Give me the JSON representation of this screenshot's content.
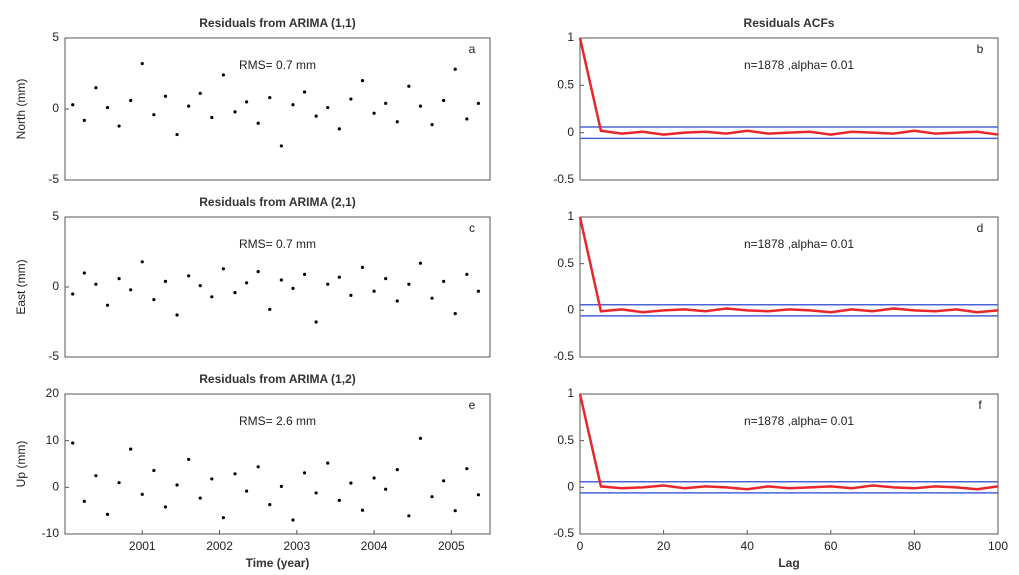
{
  "chart_data": [
    {
      "type": "scatter",
      "title": "Residuals from ARIMA (1,1)",
      "ylabel": "North (mm)",
      "annotation": "RMS= 0.7 mm",
      "panel_label": "a",
      "color": "#000000",
      "xlim": [
        2000.0,
        2005.5
      ],
      "ylim": [
        -5,
        5
      ],
      "yticks": [
        -5,
        0,
        5
      ],
      "x": [
        2000.1,
        2000.25,
        2000.4,
        2000.55,
        2000.7,
        2000.85,
        2001.0,
        2001.15,
        2001.3,
        2001.45,
        2001.6,
        2001.75,
        2001.9,
        2002.05,
        2002.2,
        2002.35,
        2002.5,
        2002.65,
        2002.8,
        2002.95,
        2003.1,
        2003.25,
        2003.4,
        2003.55,
        2003.7,
        2003.85,
        2004.0,
        2004.15,
        2004.3,
        2004.45,
        2004.6,
        2004.75,
        2004.9,
        2005.05,
        2005.2,
        2005.35
      ],
      "values": [
        0.3,
        -0.8,
        1.5,
        0.1,
        -1.2,
        0.6,
        3.2,
        -0.4,
        0.9,
        -1.8,
        0.2,
        1.1,
        -0.6,
        2.4,
        -0.2,
        0.5,
        -1.0,
        0.8,
        -2.6,
        0.3,
        1.2,
        -0.5,
        0.1,
        -1.4,
        0.7,
        2.0,
        -0.3,
        0.4,
        -0.9,
        1.6,
        0.2,
        -1.1,
        0.6,
        2.8,
        -0.7,
        0.4
      ]
    },
    {
      "type": "line",
      "title": "Residuals ACFs",
      "annotation": "n=1878 ,alpha= 0.01",
      "panel_label": "b",
      "xlim": [
        0,
        100
      ],
      "ylim": [
        -0.5,
        1
      ],
      "yticks": [
        -0.5,
        0,
        0.5,
        1
      ],
      "bounds": [
        -0.06,
        0.06
      ],
      "bounds_color": "#4a63d6",
      "x": [
        0,
        5,
        10,
        15,
        20,
        25,
        30,
        35,
        40,
        45,
        50,
        55,
        60,
        65,
        70,
        75,
        80,
        85,
        90,
        95,
        100
      ],
      "series": [
        {
          "color": "#e8262b",
          "values": [
            1,
            0.02,
            -0.01,
            0.01,
            -0.02,
            0.0,
            0.01,
            -0.01,
            0.02,
            -0.01,
            0.0,
            0.01,
            -0.02,
            0.01,
            0.0,
            -0.01,
            0.02,
            -0.01,
            0.0,
            0.01,
            -0.02
          ]
        }
      ]
    },
    {
      "type": "scatter",
      "title": "Residuals from ARIMA (2,1)",
      "ylabel": "East (mm)",
      "annotation": "RMS= 0.7 mm",
      "panel_label": "c",
      "color": "#000000",
      "xlim": [
        2000.0,
        2005.5
      ],
      "ylim": [
        -5,
        5
      ],
      "yticks": [
        -5,
        0,
        5
      ],
      "x": [
        2000.1,
        2000.25,
        2000.4,
        2000.55,
        2000.7,
        2000.85,
        2001.0,
        2001.15,
        2001.3,
        2001.45,
        2001.6,
        2001.75,
        2001.9,
        2002.05,
        2002.2,
        2002.35,
        2002.5,
        2002.65,
        2002.8,
        2002.95,
        2003.1,
        2003.25,
        2003.4,
        2003.55,
        2003.7,
        2003.85,
        2004.0,
        2004.15,
        2004.3,
        2004.45,
        2004.6,
        2004.75,
        2004.9,
        2005.05,
        2005.2,
        2005.35
      ],
      "values": [
        -0.5,
        1.0,
        0.2,
        -1.3,
        0.6,
        -0.2,
        1.8,
        -0.9,
        0.4,
        -2.0,
        0.8,
        0.1,
        -0.7,
        1.3,
        -0.4,
        0.3,
        1.1,
        -1.6,
        0.5,
        -0.1,
        0.9,
        -2.5,
        0.2,
        0.7,
        -0.6,
        1.4,
        -0.3,
        0.6,
        -1.0,
        0.2,
        1.7,
        -0.8,
        0.4,
        -1.9,
        0.9,
        -0.3
      ]
    },
    {
      "type": "line",
      "annotation": "n=1878 ,alpha= 0.01",
      "panel_label": "d",
      "xlim": [
        0,
        100
      ],
      "ylim": [
        -0.5,
        1
      ],
      "yticks": [
        -0.5,
        0,
        0.5,
        1
      ],
      "bounds": [
        -0.06,
        0.06
      ],
      "bounds_color": "#4a63d6",
      "x": [
        0,
        5,
        10,
        15,
        20,
        25,
        30,
        35,
        40,
        45,
        50,
        55,
        60,
        65,
        70,
        75,
        80,
        85,
        90,
        95,
        100
      ],
      "series": [
        {
          "color": "#e8262b",
          "values": [
            1,
            -0.01,
            0.01,
            -0.02,
            0.0,
            0.01,
            -0.01,
            0.02,
            0.0,
            -0.01,
            0.01,
            0.0,
            -0.02,
            0.01,
            -0.01,
            0.02,
            0.0,
            -0.01,
            0.01,
            -0.02,
            0.0
          ]
        }
      ]
    },
    {
      "type": "scatter",
      "title": "Residuals from ARIMA (1,2)",
      "ylabel": "Up (mm)",
      "xlabel": "Time (year)",
      "annotation": "RMS= 2.6 mm",
      "panel_label": "e",
      "color": "#000000",
      "xlim": [
        2000.0,
        2005.5
      ],
      "ylim": [
        -10,
        20
      ],
      "yticks": [
        -10,
        0,
        10,
        20
      ],
      "xticks": [
        2001,
        2002,
        2003,
        2004,
        2005
      ],
      "x": [
        2000.1,
        2000.25,
        2000.4,
        2000.55,
        2000.7,
        2000.85,
        2001.0,
        2001.15,
        2001.3,
        2001.45,
        2001.6,
        2001.75,
        2001.9,
        2002.05,
        2002.2,
        2002.35,
        2002.5,
        2002.65,
        2002.8,
        2002.95,
        2003.1,
        2003.25,
        2003.4,
        2003.55,
        2003.7,
        2003.85,
        2004.0,
        2004.15,
        2004.3,
        2004.45,
        2004.6,
        2004.75,
        2004.9,
        2005.05,
        2005.2,
        2005.35
      ],
      "values": [
        9.5,
        -3.0,
        2.5,
        -5.8,
        1.0,
        8.2,
        -1.5,
        3.6,
        -4.2,
        0.5,
        6.0,
        -2.3,
        1.8,
        -6.5,
        2.9,
        -0.8,
        4.4,
        -3.7,
        0.2,
        -7.0,
        3.1,
        -1.2,
        5.2,
        -2.8,
        0.9,
        -4.9,
        2.0,
        -0.4,
        3.8,
        -6.1,
        10.5,
        -2.0,
        1.4,
        -5.0,
        4.0,
        -1.6
      ]
    },
    {
      "type": "line",
      "xlabel": "Lag",
      "annotation": "n=1878 ,alpha= 0.01",
      "panel_label": "f",
      "xlim": [
        0,
        100
      ],
      "ylim": [
        -0.5,
        1
      ],
      "yticks": [
        -0.5,
        0,
        0.5,
        1
      ],
      "xticks": [
        0,
        20,
        40,
        60,
        80,
        100
      ],
      "bounds": [
        -0.06,
        0.06
      ],
      "bounds_color": "#4a63d6",
      "x": [
        0,
        5,
        10,
        15,
        20,
        25,
        30,
        35,
        40,
        45,
        50,
        55,
        60,
        65,
        70,
        75,
        80,
        85,
        90,
        95,
        100
      ],
      "series": [
        {
          "color": "#e8262b",
          "values": [
            1,
            0.01,
            -0.01,
            0.0,
            0.02,
            -0.01,
            0.01,
            0.0,
            -0.02,
            0.01,
            -0.01,
            0.0,
            0.01,
            -0.01,
            0.02,
            0.0,
            -0.01,
            0.01,
            0.0,
            -0.02,
            0.01
          ]
        }
      ]
    }
  ]
}
